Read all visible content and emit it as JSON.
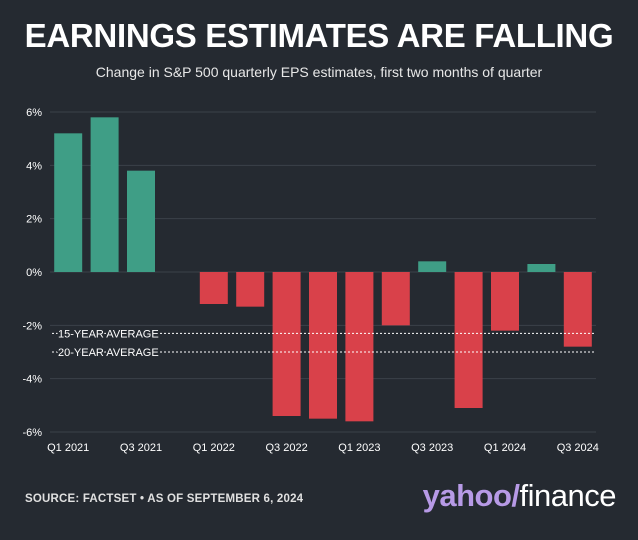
{
  "title": "EARNINGS ESTIMATES ARE FALLING",
  "subtitle": "Change in S&P 500 quarterly EPS estimates, first two months of quarter",
  "source": "SOURCE: FACTSET • AS OF SEPTEMBER 6, 2024",
  "logo": {
    "yahoo": "yahoo",
    "slash": "/",
    "finance": "finance"
  },
  "colors": {
    "positive": "#3f9e86",
    "negative": "#d9414a",
    "grid": "#3b4149",
    "text": "#ffffff"
  },
  "chart_data": {
    "type": "bar",
    "categories": [
      "Q1 2021",
      "Q2 2021",
      "Q3 2021",
      "Q4 2021",
      "Q1 2022",
      "Q2 2022",
      "Q3 2022",
      "Q4 2022",
      "Q1 2023",
      "Q2 2023",
      "Q3 2023",
      "Q4 2023",
      "Q1 2024",
      "Q2 2024",
      "Q3 2024"
    ],
    "tick_labels": [
      "Q1 2021",
      "",
      "Q3 2021",
      "",
      "Q1 2022",
      "",
      "Q3 2022",
      "",
      "Q1 2023",
      "",
      "Q3 2023",
      "",
      "Q1 2024",
      "",
      "Q3 2024"
    ],
    "values": [
      5.2,
      5.8,
      3.8,
      null,
      -1.2,
      -1.3,
      -5.4,
      -5.5,
      -5.6,
      -2.0,
      0.4,
      -5.1,
      -2.2,
      0.3,
      -2.8
    ],
    "ylim": [
      -6,
      6
    ],
    "yticks": [
      6,
      4,
      2,
      0,
      -2,
      -4,
      -6
    ],
    "ytick_labels": [
      "6%",
      "4%",
      "2%",
      "0%",
      "-2%",
      "-4%",
      "-6%"
    ],
    "reference_lines": [
      {
        "label": "15-YEAR AVERAGE",
        "value": -2.3
      },
      {
        "label": "20-YEAR AVERAGE",
        "value": -3.0
      }
    ],
    "grid": true
  }
}
